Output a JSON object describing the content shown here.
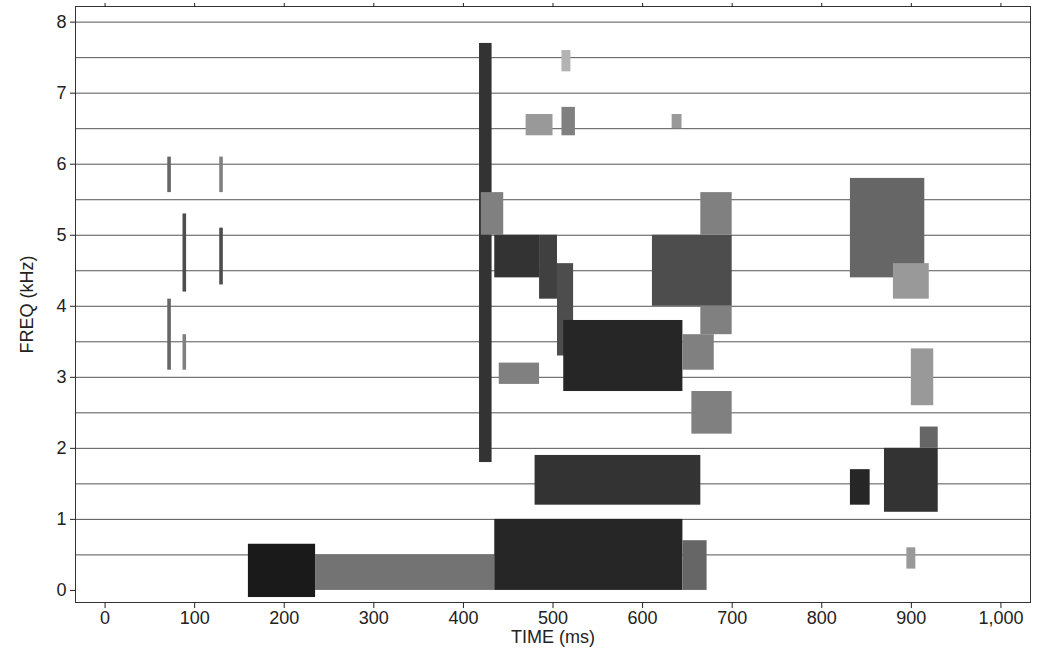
{
  "chart_data": {
    "type": "spectrogram",
    "x_label": "TIME (ms)",
    "y_label": "FREQ (kHz)",
    "xlim": [
      -33,
      1033
    ],
    "ylim": [
      -0.17,
      8.22
    ],
    "xticks": [
      0,
      100,
      200,
      300,
      400,
      500,
      600,
      700,
      800,
      900,
      1000
    ],
    "yticks": [
      0,
      1,
      2,
      3,
      4,
      5,
      6,
      7,
      8
    ],
    "grid": true,
    "ygrid": [
      0.5,
      1,
      1.5,
      2,
      2.5,
      3,
      3.5,
      4,
      4.5,
      5,
      5.5,
      6,
      6.5,
      7,
      7.5,
      8
    ],
    "color": "#000000",
    "level_range": [
      0,
      1
    ],
    "cells": [
      {
        "t0": 70,
        "t1": 74,
        "f0": 5.6,
        "f1": 6.1,
        "level": 0.6
      },
      {
        "t0": 70,
        "t1": 74,
        "f0": 3.1,
        "f1": 4.1,
        "level": 0.6
      },
      {
        "t0": 87,
        "t1": 91,
        "f0": 4.2,
        "f1": 5.3,
        "level": 0.7
      },
      {
        "t0": 87,
        "t1": 91,
        "f0": 3.1,
        "f1": 3.6,
        "level": 0.5
      },
      {
        "t0": 128,
        "t1": 132,
        "f0": 4.3,
        "f1": 5.1,
        "level": 0.7
      },
      {
        "t0": 128,
        "t1": 132,
        "f0": 5.6,
        "f1": 6.1,
        "level": 0.5
      },
      {
        "t0": 160,
        "t1": 235,
        "f0": -0.1,
        "f1": 0.65,
        "level": 0.9
      },
      {
        "t0": 235,
        "t1": 435,
        "f0": 0.0,
        "f1": 0.5,
        "level": 0.55
      },
      {
        "t0": 435,
        "t1": 645,
        "f0": 0.0,
        "f1": 1.0,
        "level": 0.85
      },
      {
        "t0": 645,
        "t1": 672,
        "f0": 0.0,
        "f1": 0.7,
        "level": 0.6
      },
      {
        "t0": 418,
        "t1": 432,
        "f0": 1.8,
        "f1": 7.7,
        "level": 0.8
      },
      {
        "t0": 420,
        "t1": 445,
        "f0": 5.0,
        "f1": 5.6,
        "level": 0.5
      },
      {
        "t0": 435,
        "t1": 485,
        "f0": 4.4,
        "f1": 5.0,
        "level": 0.8
      },
      {
        "t0": 485,
        "t1": 505,
        "f0": 4.1,
        "f1": 5.0,
        "level": 0.75
      },
      {
        "t0": 505,
        "t1": 523,
        "f0": 3.3,
        "f1": 4.6,
        "level": 0.7
      },
      {
        "t0": 512,
        "t1": 645,
        "f0": 2.8,
        "f1": 3.8,
        "level": 0.85
      },
      {
        "t0": 480,
        "t1": 665,
        "f0": 1.2,
        "f1": 1.9,
        "level": 0.8
      },
      {
        "t0": 440,
        "t1": 485,
        "f0": 2.9,
        "f1": 3.2,
        "level": 0.5
      },
      {
        "t0": 470,
        "t1": 500,
        "f0": 6.4,
        "f1": 6.7,
        "level": 0.4
      },
      {
        "t0": 510,
        "t1": 525,
        "f0": 6.4,
        "f1": 6.8,
        "level": 0.5
      },
      {
        "t0": 510,
        "t1": 520,
        "f0": 7.3,
        "f1": 7.6,
        "level": 0.3
      },
      {
        "t0": 633,
        "t1": 644,
        "f0": 6.5,
        "f1": 6.7,
        "level": 0.4
      },
      {
        "t0": 611,
        "t1": 700,
        "f0": 4.0,
        "f1": 5.0,
        "level": 0.7
      },
      {
        "t0": 665,
        "t1": 700,
        "f0": 5.0,
        "f1": 5.6,
        "level": 0.5
      },
      {
        "t0": 665,
        "t1": 700,
        "f0": 3.6,
        "f1": 4.0,
        "level": 0.5
      },
      {
        "t0": 655,
        "t1": 700,
        "f0": 2.2,
        "f1": 2.8,
        "level": 0.5
      },
      {
        "t0": 645,
        "t1": 680,
        "f0": 3.1,
        "f1": 3.6,
        "level": 0.5
      },
      {
        "t0": 832,
        "t1": 854,
        "f0": 1.2,
        "f1": 1.7,
        "level": 0.85
      },
      {
        "t0": 870,
        "t1": 930,
        "f0": 1.1,
        "f1": 2.0,
        "level": 0.8
      },
      {
        "t0": 910,
        "t1": 930,
        "f0": 2.0,
        "f1": 2.3,
        "level": 0.6
      },
      {
        "t0": 832,
        "t1": 915,
        "f0": 4.4,
        "f1": 5.8,
        "level": 0.6
      },
      {
        "t0": 880,
        "t1": 920,
        "f0": 4.1,
        "f1": 4.6,
        "level": 0.4
      },
      {
        "t0": 900,
        "t1": 925,
        "f0": 2.6,
        "f1": 3.4,
        "level": 0.4
      },
      {
        "t0": 895,
        "t1": 905,
        "f0": 0.3,
        "f1": 0.6,
        "level": 0.4
      }
    ]
  }
}
